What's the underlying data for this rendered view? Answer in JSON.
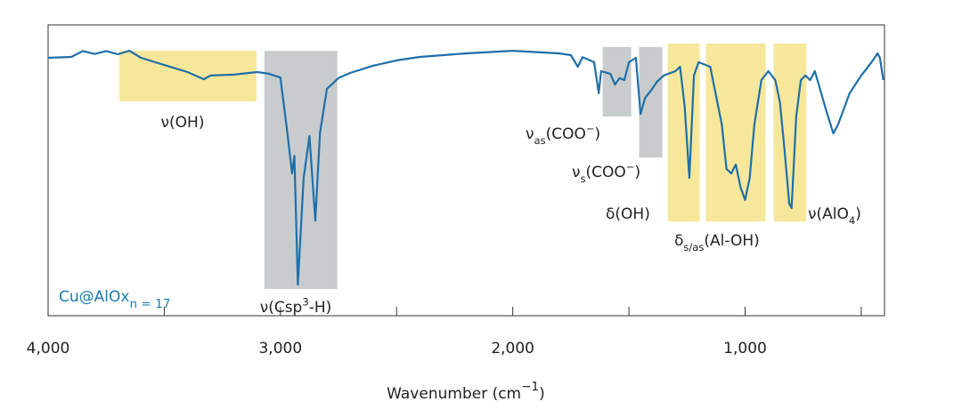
{
  "chart_data": {
    "type": "line",
    "series_label": [
      {
        "t": "Cu@AlOx"
      },
      {
        "t": "n = 17",
        "pos": "sub"
      }
    ],
    "label_color": "#1a7db0",
    "xlabel": [
      {
        "t": "Wavenumber (cm"
      },
      {
        "t": "−1",
        "pos": "sup"
      },
      {
        "t": ")"
      }
    ],
    "xlim": [
      4000,
      400
    ],
    "ylim": [
      0,
      100
    ],
    "xticks": [
      {
        "value": 4000,
        "label": "4,000"
      },
      {
        "value": 3000,
        "label": "3,000"
      },
      {
        "value": 2000,
        "label": "2,000"
      },
      {
        "value": 1000,
        "label": "1,000"
      }
    ],
    "xminorticks": [
      3500,
      2500,
      1500,
      500
    ],
    "x": [
      4000,
      3900,
      3850,
      3800,
      3750,
      3700,
      3650,
      3600,
      3500,
      3400,
      3330,
      3300,
      3200,
      3100,
      3050,
      3000,
      2970,
      2950,
      2940,
      2925,
      2900,
      2875,
      2850,
      2830,
      2800,
      2750,
      2700,
      2600,
      2500,
      2400,
      2200,
      2000,
      1800,
      1750,
      1720,
      1700,
      1650,
      1630,
      1620,
      1580,
      1560,
      1540,
      1520,
      1500,
      1470,
      1450,
      1430,
      1400,
      1380,
      1350,
      1300,
      1280,
      1260,
      1240,
      1220,
      1200,
      1150,
      1100,
      1080,
      1060,
      1040,
      1020,
      1000,
      980,
      960,
      930,
      900,
      870,
      850,
      830,
      810,
      800,
      780,
      760,
      740,
      720,
      700,
      650,
      620,
      600,
      550,
      500,
      450,
      430,
      420,
      405
    ],
    "series": [
      {
        "name": "Cu@AlOx",
        "color": "#1f6fa8",
        "values": [
          88.7,
          89,
          91,
          90,
          91,
          89.9,
          91.1,
          88.7,
          86.2,
          83.8,
          81.3,
          82.6,
          82.9,
          83.8,
          83.2,
          81.9,
          62.7,
          48.9,
          55,
          10.7,
          47.4,
          61.8,
          32.7,
          62.7,
          78,
          81.7,
          83.5,
          86,
          87.8,
          89,
          90.2,
          91.1,
          90.2,
          89.6,
          85.6,
          88.9,
          87.2,
          76.5,
          84.1,
          83.2,
          79.5,
          81.7,
          81.0,
          87.2,
          88.7,
          69.4,
          74.9,
          78,
          80.4,
          82.6,
          84.1,
          85.6,
          71.9,
          47.4,
          82.6,
          87.2,
          85.6,
          65.7,
          50.5,
          48.9,
          52,
          44.3,
          39.8,
          47.4,
          65.7,
          81,
          84.1,
          81,
          73.4,
          56.9,
          38.5,
          37,
          68.5,
          81,
          82.6,
          81,
          84.1,
          70.3,
          62.7,
          65.7,
          76.5,
          82.6,
          87.8,
          90.2,
          88.7,
          81
        ]
      }
    ],
    "regions": [
      {
        "x": [
          3693,
          3103
        ],
        "y": [
          73.7,
          91.1
        ],
        "color": "#f7e79b",
        "label": [
          {
            "t": "ν(OH)"
          }
        ]
      },
      {
        "x": [
          3069,
          2755
        ],
        "y": [
          9.2,
          91.1
        ],
        "color": "#c8cccd",
        "label": [
          {
            "t": "ν(Csp"
          },
          {
            "t": "3",
            "pos": "sup"
          },
          {
            "t": "-H)"
          }
        ]
      },
      {
        "x": [
          1613,
          1490
        ],
        "y": [
          68.5,
          92.4
        ],
        "color": "#c8cccd",
        "label": [
          {
            "t": "ν"
          },
          {
            "t": "as",
            "pos": "sub"
          },
          {
            "t": "(COO"
          },
          {
            "t": "−",
            "pos": "sup"
          },
          {
            "t": ")"
          }
        ]
      },
      {
        "x": [
          1456,
          1356
        ],
        "y": [
          54.4,
          92.4
        ],
        "color": "#c8cccd",
        "label": [
          {
            "t": "ν"
          },
          {
            "t": "s",
            "pos": "sub"
          },
          {
            "t": "(COO"
          },
          {
            "t": "−",
            "pos": "sup"
          },
          {
            "t": ")"
          }
        ]
      },
      {
        "x": [
          1333,
          1195
        ],
        "y": [
          32.4,
          93.6
        ],
        "color": "#f7e79b",
        "label": [
          {
            "t": "δ(OH)"
          }
        ]
      },
      {
        "x": [
          1169,
          912
        ],
        "y": [
          32.4,
          93.6
        ],
        "color": "#f7e79b",
        "label": [
          {
            "t": "δ"
          },
          {
            "t": "s/as",
            "pos": "sub"
          },
          {
            "t": "(Al-OH)"
          }
        ]
      },
      {
        "x": [
          877,
          736
        ],
        "y": [
          32.4,
          93.6
        ],
        "color": "#f7e79b",
        "label": [
          {
            "t": "ν(AlO"
          },
          {
            "t": "4",
            "pos": "sub"
          },
          {
            "t": ")"
          }
        ]
      }
    ]
  }
}
